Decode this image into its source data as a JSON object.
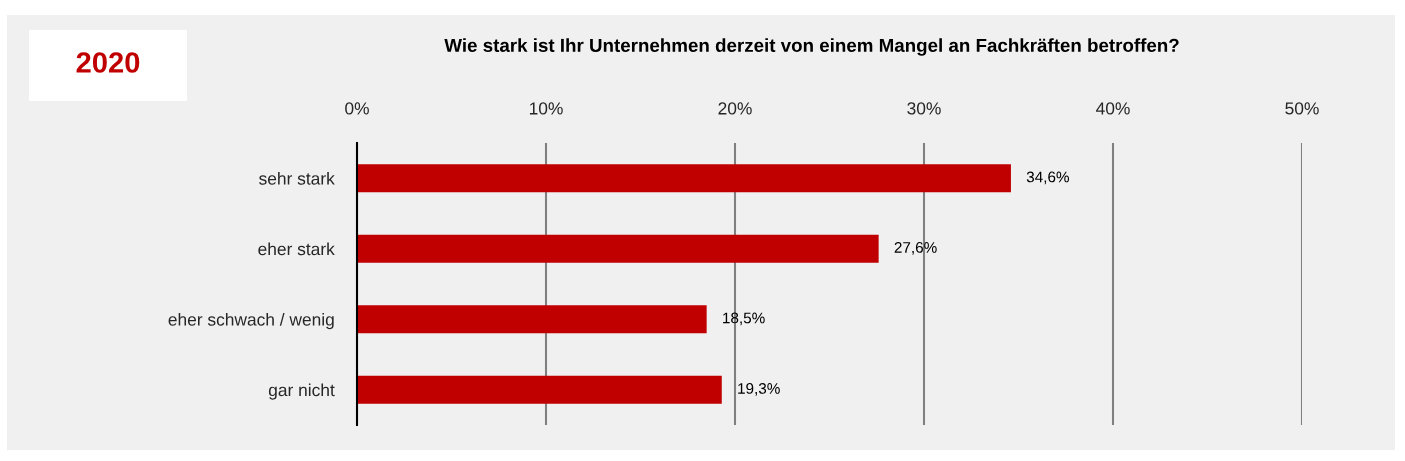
{
  "chart_data": {
    "type": "bar",
    "orientation": "horizontal",
    "title": "Wie stark ist Ihr Unternehmen derzeit von einem Mangel an Fachkräften betroffen?",
    "annotations": [
      "2020"
    ],
    "categories": [
      "sehr stark",
      "eher stark",
      "eher schwach / wenig",
      "gar nicht"
    ],
    "values": [
      34.6,
      27.6,
      18.5,
      19.3
    ],
    "color": "#c00000",
    "value_labels": [
      "34,6%",
      "27,6%",
      "18,5%",
      "19,3%"
    ],
    "xlim": [
      0,
      50
    ],
    "xticks": [
      {
        "value": 0,
        "label": "0%"
      },
      {
        "value": 10,
        "label": "10%"
      },
      {
        "value": 20,
        "label": "20%"
      },
      {
        "value": 30,
        "label": "30%"
      },
      {
        "value": 40,
        "label": "40%"
      },
      {
        "value": 50,
        "label": "50%"
      }
    ],
    "grid": "x"
  }
}
